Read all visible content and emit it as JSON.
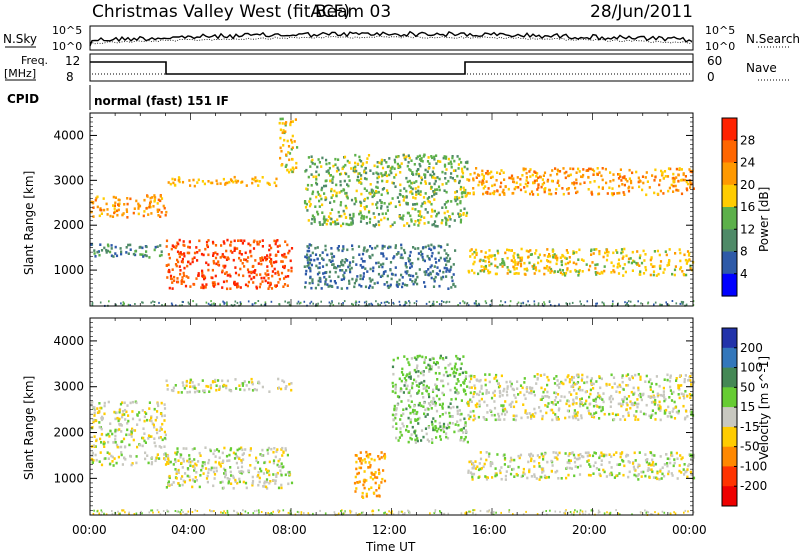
{
  "header": {
    "title": "Christmas Valley West (fitACF)",
    "beam": "Beam 03",
    "date": "28/Jun/2011"
  },
  "strip1": {
    "left_label": "N.Sky",
    "left_ticks": [
      "10^5",
      "10^0"
    ],
    "right_ticks": [
      "10^5",
      "10^0"
    ],
    "right_label": "N.Search"
  },
  "strip2": {
    "left_label_line1": "Freq.",
    "left_label_line2": "[MHz]",
    "left_ticks": [
      "12",
      "8"
    ],
    "right_ticks": [
      "60",
      "0"
    ],
    "right_label": "Nave"
  },
  "cpid": {
    "label": "CPID",
    "value": "normal (fast) 151 IF"
  },
  "chart_data": [
    {
      "type": "heatmap",
      "title": "",
      "xlabel": "Time UT",
      "ylabel": "Slant Range [km]",
      "x_ticks": [
        "00:00",
        "04:00",
        "08:00",
        "12:00",
        "16:00",
        "20:00",
        "00:00"
      ],
      "xlim": [
        0,
        24
      ],
      "ylim": [
        200,
        4500
      ],
      "y_ticks": [
        1000,
        2000,
        3000,
        4000
      ],
      "colorbar": {
        "label": "Power [dB]",
        "ticks": [
          4,
          8,
          12,
          16,
          20,
          24,
          28
        ],
        "colors": [
          "#0000ff",
          "#2e5aa8",
          "#4f8a68",
          "#5cb04a",
          "#ffcc00",
          "#ff9900",
          "#ff6600",
          "#ff2200"
        ]
      },
      "bands": [
        {
          "t": [
            0,
            3
          ],
          "r": [
            2200,
            2700
          ],
          "value": 22
        },
        {
          "t": [
            0,
            3
          ],
          "r": [
            1300,
            1600
          ],
          "value": 10
        },
        {
          "t": [
            3,
            7.5
          ],
          "r": [
            2900,
            3100
          ],
          "value": 20
        },
        {
          "t": [
            3,
            8
          ],
          "r": [
            600,
            1700
          ],
          "value": 28
        },
        {
          "t": [
            7.5,
            8.2
          ],
          "r": [
            3200,
            4400
          ],
          "value": 18
        },
        {
          "t": [
            8.5,
            15
          ],
          "r": [
            2000,
            3600
          ],
          "value": 14
        },
        {
          "t": [
            8.5,
            14.5
          ],
          "r": [
            600,
            1600
          ],
          "value": 8
        },
        {
          "t": [
            15,
            24
          ],
          "r": [
            2700,
            3300
          ],
          "value": 22
        },
        {
          "t": [
            15,
            24
          ],
          "r": [
            900,
            1500
          ],
          "value": 18
        }
      ]
    },
    {
      "type": "heatmap",
      "title": "",
      "xlabel": "Time UT",
      "ylabel": "Slant Range [km]",
      "x_ticks": [
        "00:00",
        "04:00",
        "08:00",
        "12:00",
        "16:00",
        "20:00",
        "00:00"
      ],
      "xlim": [
        0,
        24
      ],
      "ylim": [
        200,
        4500
      ],
      "y_ticks": [
        1000,
        2000,
        3000,
        4000
      ],
      "colorbar": {
        "label": "Velocity [m s^-1]",
        "ticks": [
          200,
          100,
          50,
          15,
          -15,
          -50,
          -100,
          -200
        ],
        "colors": [
          "#2233aa",
          "#3377bb",
          "#448855",
          "#66cc33",
          "#c8c8c0",
          "#ffcc00",
          "#ff8800",
          "#ff3300",
          "#ee0000"
        ]
      },
      "bands": [
        {
          "t": [
            0,
            3
          ],
          "r": [
            1700,
            2700
          ],
          "value": 0
        },
        {
          "t": [
            0,
            3
          ],
          "r": [
            1300,
            1600
          ],
          "value": 0
        },
        {
          "t": [
            3,
            8
          ],
          "r": [
            800,
            1700
          ],
          "value": 0
        },
        {
          "t": [
            3,
            8
          ],
          "r": [
            2900,
            3200
          ],
          "value": 0
        },
        {
          "t": [
            10.5,
            11.8
          ],
          "r": [
            600,
            1600
          ],
          "value": -60
        },
        {
          "t": [
            12,
            15
          ],
          "r": [
            1800,
            3700
          ],
          "value": 30
        },
        {
          "t": [
            15,
            24
          ],
          "r": [
            2300,
            3300
          ],
          "value": 0
        },
        {
          "t": [
            15,
            24
          ],
          "r": [
            1000,
            1600
          ],
          "value": 0
        }
      ]
    }
  ]
}
